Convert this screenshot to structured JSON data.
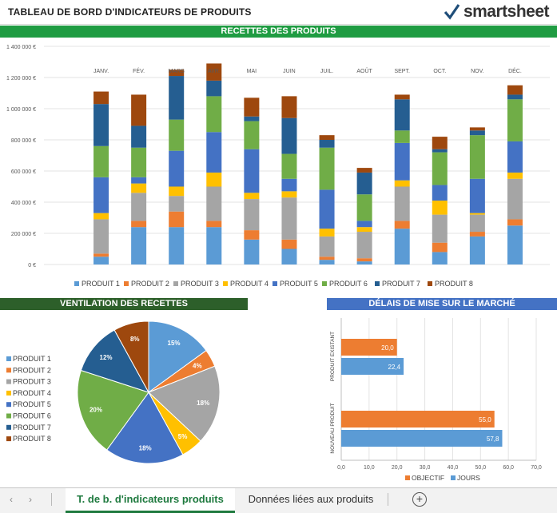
{
  "header": {
    "title": "TABLEAU DE BORD D'INDICATEURS DE PRODUITS",
    "logo_text": "smartsheet",
    "logo_mark": "✓"
  },
  "sections": {
    "recettes": "RECETTES DES PRODUITS",
    "ventilation": "VENTILATION DES RECETTES",
    "delais": "DÉLAIS DE MISE SUR LE MARCHÉ"
  },
  "colors": {
    "p1": "#5b9bd5",
    "p2": "#ed7d31",
    "p3": "#a5a5a5",
    "p4": "#ffc000",
    "p5": "#4472c4",
    "p6": "#70ad47",
    "p7": "#255e91",
    "p8": "#9e480e"
  },
  "chart_data": [
    {
      "type": "bar",
      "stacked": true,
      "title": "RECETTES DES PRODUITS",
      "categories": [
        "JANV.",
        "FÉV.",
        "MARS",
        "AVR.",
        "MAI",
        "JUIN",
        "JUIL.",
        "AOÛT",
        "SEPT.",
        "OCT.",
        "NOV.",
        "DÉC."
      ],
      "y_ticks": [
        "0 €",
        "200 000 €",
        "400 000 €",
        "600 000 €",
        "800 000 €",
        "1 000 000 €",
        "1 200 000 €",
        "1 400 000 €"
      ],
      "ylim": [
        0,
        1400000
      ],
      "grid": true,
      "legend_position": "bottom",
      "series": [
        {
          "name": "PRODUIT 1",
          "values": [
            50000,
            240000,
            240000,
            240000,
            160000,
            100000,
            30000,
            20000,
            230000,
            80000,
            180000,
            250000
          ]
        },
        {
          "name": "PRODUIT 2",
          "values": [
            20000,
            40000,
            100000,
            40000,
            60000,
            60000,
            20000,
            20000,
            50000,
            60000,
            30000,
            40000
          ]
        },
        {
          "name": "PRODUIT 3",
          "values": [
            220000,
            180000,
            100000,
            220000,
            200000,
            270000,
            130000,
            170000,
            220000,
            180000,
            110000,
            260000
          ]
        },
        {
          "name": "PRODUIT 4",
          "values": [
            40000,
            60000,
            60000,
            90000,
            40000,
            40000,
            50000,
            30000,
            40000,
            90000,
            10000,
            40000
          ]
        },
        {
          "name": "PRODUIT 5",
          "values": [
            230000,
            40000,
            230000,
            260000,
            280000,
            80000,
            250000,
            40000,
            240000,
            100000,
            220000,
            200000
          ]
        },
        {
          "name": "PRODUIT 6",
          "values": [
            200000,
            190000,
            200000,
            230000,
            180000,
            160000,
            270000,
            170000,
            80000,
            210000,
            280000,
            270000
          ]
        },
        {
          "name": "PRODUIT 7",
          "values": [
            270000,
            140000,
            280000,
            100000,
            30000,
            230000,
            50000,
            140000,
            200000,
            20000,
            30000,
            30000
          ]
        },
        {
          "name": "PRODUIT 8",
          "values": [
            80000,
            200000,
            40000,
            110000,
            120000,
            140000,
            30000,
            30000,
            30000,
            80000,
            20000,
            60000
          ]
        }
      ]
    },
    {
      "type": "pie",
      "title": "VENTILATION DES RECETTES",
      "legend_position": "left",
      "labels": [
        "PRODUIT 1",
        "PRODUIT 2",
        "PRODUIT 3",
        "PRODUIT 4",
        "PRODUIT 5",
        "PRODUIT 6",
        "PRODUIT 7",
        "PRODUIT 8"
      ],
      "values": [
        15,
        4,
        18,
        5,
        18,
        20,
        12,
        8
      ],
      "data_labels": [
        "15%",
        "4%",
        "18%",
        "5%",
        "18%",
        "20%",
        "12%",
        "8%"
      ]
    },
    {
      "type": "bar",
      "orientation": "horizontal",
      "title": "DÉLAIS DE MISE SUR LE MARCHÉ",
      "categories": [
        "PRODUIT EXISTANT",
        "NOUVEAU PRODUIT"
      ],
      "x_ticks": [
        "0,0",
        "10,0",
        "20,0",
        "30,0",
        "40,0",
        "50,0",
        "60,0",
        "70,0"
      ],
      "xlim": [
        0,
        70
      ],
      "legend_position": "bottom",
      "series": [
        {
          "name": "OBJECTIF",
          "values": [
            20.0,
            55.0
          ],
          "labels": [
            "20,0",
            "55,0"
          ]
        },
        {
          "name": "JOURS",
          "values": [
            22.4,
            57.8
          ],
          "labels": [
            "22,4",
            "57,8"
          ]
        }
      ]
    }
  ],
  "tabs": {
    "active": "T. de b. d'indicateurs produits",
    "second": "Données liées aux produits",
    "prev_arrow": "‹",
    "next_arrow": "›",
    "add_label": "+"
  }
}
